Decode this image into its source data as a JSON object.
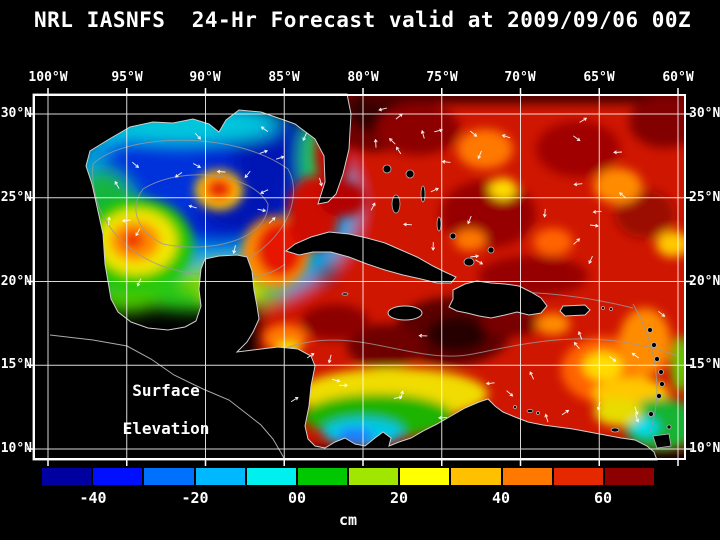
{
  "title": "NRL IASNFS  24-Hr Forecast valid at 2009/09/06 00Z",
  "map": {
    "lon_labels": [
      "100°W",
      "95°W",
      "90°W",
      "85°W",
      "80°W",
      "75°W",
      "70°W",
      "65°W",
      "60°W"
    ],
    "lat_labels": [
      "30°N",
      "25°N",
      "20°N",
      "15°N",
      "10°N"
    ],
    "overlay": {
      "line1": "Surface",
      "line2": "Elevation"
    }
  },
  "colorbar": {
    "unit": "cm",
    "labels": [
      "-40",
      "-20",
      "00",
      "20",
      "40",
      "60"
    ],
    "segment_colors": [
      "#0000a0",
      "#0010ff",
      "#0070ff",
      "#00b8ff",
      "#00f0f0",
      "#00c800",
      "#a0e600",
      "#ffff00",
      "#ffc000",
      "#ff7800",
      "#e62800",
      "#8c0000"
    ],
    "segment_bounds": [
      -50,
      -40,
      -30,
      -20,
      -10,
      0,
      10,
      20,
      30,
      40,
      50,
      60,
      70
    ]
  },
  "chart_data": {
    "type": "heatmap",
    "title": "NRL IASNFS  24-Hr Forecast valid at 2009/09/06 00Z",
    "field": "Surface Elevation",
    "units": "cm",
    "lon_range": [
      "100°W",
      "60°W"
    ],
    "lat_range": [
      "10°N",
      "30°N"
    ],
    "colorbar_ticks": [
      -40,
      -20,
      0,
      20,
      40,
      60
    ],
    "legend_position": "bottom",
    "grid": "on"
  }
}
